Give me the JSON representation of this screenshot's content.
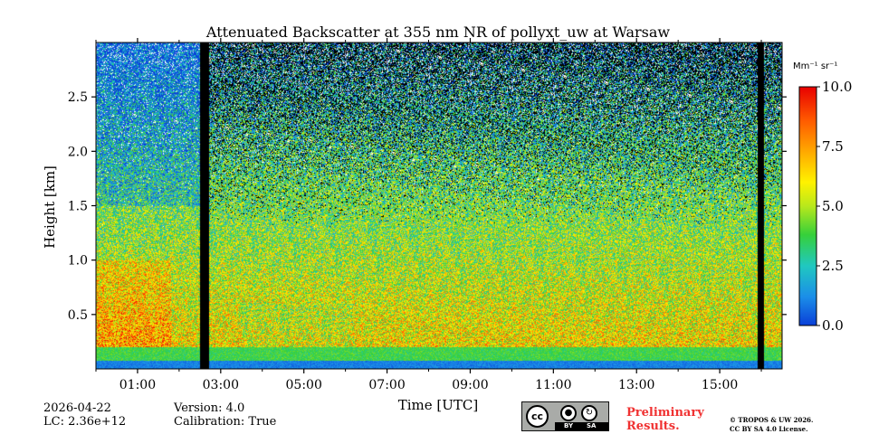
{
  "chart_data": {
    "type": "heatmap",
    "title": "Attenuated Backscatter at 355 nm NR of pollyxt_uw at Warsaw",
    "xlabel": "Time [UTC]",
    "ylabel": "Height [km]",
    "xlim_hours": [
      0,
      16.5
    ],
    "ylim_km": [
      0,
      3.0
    ],
    "x_ticks": [
      {
        "value": 1,
        "label": "01:00"
      },
      {
        "value": 3,
        "label": "03:00"
      },
      {
        "value": 5,
        "label": "05:00"
      },
      {
        "value": 7,
        "label": "07:00"
      },
      {
        "value": 9,
        "label": "09:00"
      },
      {
        "value": 11,
        "label": "11:00"
      },
      {
        "value": 13,
        "label": "13:00"
      },
      {
        "value": 15,
        "label": "15:00"
      }
    ],
    "y_ticks": [
      {
        "value": 0.5,
        "label": "0.5"
      },
      {
        "value": 1.0,
        "label": "1.0"
      },
      {
        "value": 1.5,
        "label": "1.5"
      },
      {
        "value": 2.0,
        "label": "2.0"
      },
      {
        "value": 2.5,
        "label": "2.5"
      }
    ],
    "colorbar": {
      "unit_label": "Mm⁻¹ sr⁻¹",
      "range": [
        0.0,
        10.0
      ],
      "ticks": [
        {
          "value": 0.0,
          "label": "0.0"
        },
        {
          "value": 2.5,
          "label": "2.5"
        },
        {
          "value": 5.0,
          "label": "5.0"
        },
        {
          "value": 7.5,
          "label": "7.5"
        },
        {
          "value": 10.0,
          "label": "10.0"
        }
      ],
      "colormap": [
        "#0a3fd8",
        "#1b8ee8",
        "#20c8c0",
        "#36d03a",
        "#b8e81c",
        "#fff200",
        "#ffae00",
        "#ff5a00",
        "#e80000"
      ]
    },
    "no_data_gaps_hours": [
      [
        2.5,
        2.7
      ],
      [
        15.9,
        16.05
      ]
    ],
    "ground_layer_km": [
      0.0,
      0.25
    ],
    "background_noise_from_km": 2.0
  },
  "info": {
    "date": "2026-04-22",
    "lc": "LC: 2.36e+12",
    "version": "Version: 4.0",
    "calibration": "Calibration: True"
  },
  "license": {
    "cc": "cc",
    "by": "BY",
    "sa": "SA",
    "preliminary_line1": "Preliminary",
    "preliminary_line2": "Results.",
    "copyright_line1": "© TROPOS & UW 2026.",
    "copyright_line2": "CC BY SA 4.0 License."
  }
}
